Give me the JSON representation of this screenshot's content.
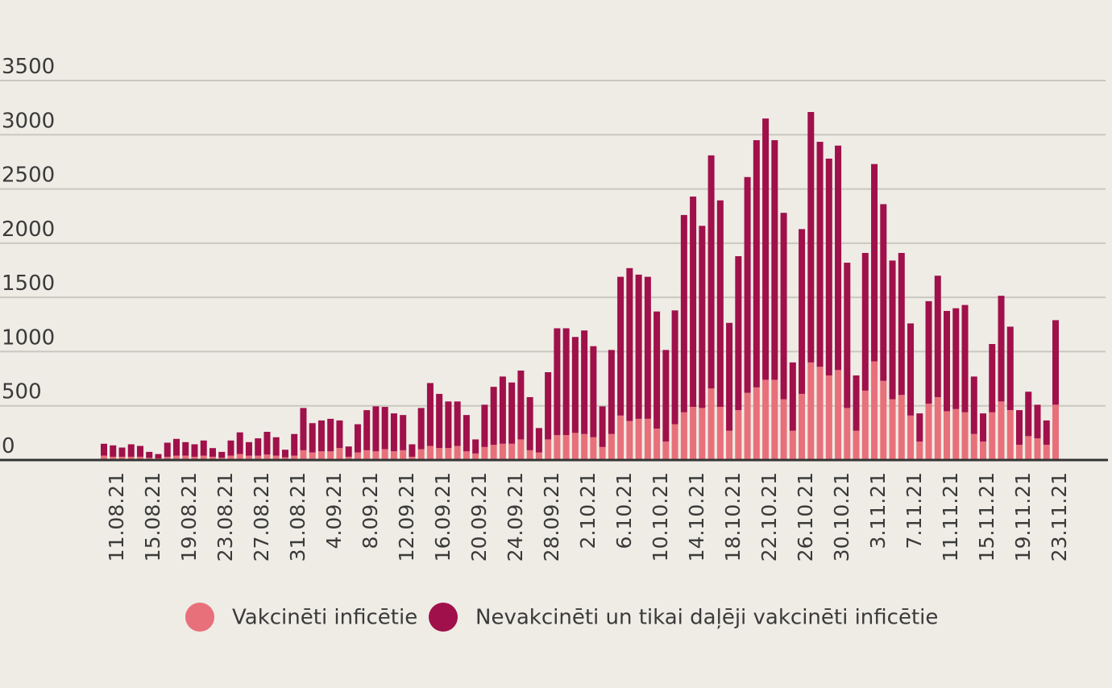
{
  "chart_data": {
    "type": "stacked_bar",
    "categories": [
      null,
      "11.08.21",
      null,
      null,
      null,
      "15.08.21",
      null,
      null,
      null,
      "19.08.21",
      null,
      null,
      null,
      "23.08.21",
      null,
      null,
      null,
      "27.08.21",
      null,
      null,
      null,
      "31.08.21",
      null,
      null,
      null,
      "4.09.21",
      null,
      null,
      null,
      "8.09.21",
      null,
      null,
      null,
      "12.09.21",
      null,
      null,
      null,
      "16.09.21",
      null,
      null,
      null,
      "20.09.21",
      null,
      null,
      null,
      "24.09.21",
      null,
      null,
      null,
      "28.09.21",
      null,
      null,
      null,
      "2.10.21",
      null,
      null,
      null,
      "6.10.21",
      null,
      null,
      null,
      "10.10.21",
      null,
      null,
      null,
      "14.10.21",
      null,
      null,
      null,
      "18.10.21",
      null,
      null,
      null,
      "22.10.21",
      null,
      null,
      null,
      "26.10.21",
      null,
      null,
      null,
      "30.10.21",
      null,
      null,
      null,
      "3.11.21",
      null,
      null,
      null,
      "7.11.21",
      null,
      null,
      null,
      "11.11.21",
      null,
      null,
      null,
      "15.11.21",
      null,
      null,
      null,
      "19.11.21",
      null,
      null,
      null,
      "23.11.21"
    ],
    "series": [
      {
        "name": "Vakcinēti inficētie",
        "color": "#e8707a",
        "values": [
          40,
          30,
          30,
          30,
          30,
          20,
          15,
          30,
          40,
          40,
          30,
          40,
          30,
          20,
          40,
          55,
          40,
          40,
          50,
          40,
          25,
          40,
          90,
          70,
          80,
          80,
          110,
          30,
          70,
          90,
          80,
          100,
          80,
          90,
          30,
          100,
          130,
          110,
          110,
          130,
          80,
          60,
          120,
          140,
          150,
          150,
          190,
          90,
          70,
          190,
          230,
          230,
          250,
          240,
          210,
          120,
          240,
          410,
          360,
          380,
          380,
          290,
          170,
          330,
          440,
          490,
          480,
          660,
          490,
          270,
          460,
          620,
          670,
          740,
          740,
          560,
          270,
          610,
          900,
          860,
          780,
          830,
          480,
          270,
          640,
          910,
          730,
          560,
          600,
          410,
          170,
          520,
          580,
          450,
          470,
          440,
          240,
          170,
          440,
          540,
          460,
          140,
          220,
          200,
          140,
          510
        ]
      },
      {
        "name": "Nevakcinēti un tikai daļēji vakcinēti inficētie",
        "color": "#a0104a",
        "values": [
          110,
          105,
          85,
          115,
          100,
          55,
          40,
          130,
          155,
          125,
          115,
          140,
          80,
          55,
          140,
          200,
          125,
          160,
          210,
          170,
          70,
          200,
          390,
          270,
          285,
          300,
          255,
          95,
          260,
          370,
          415,
          390,
          350,
          325,
          115,
          380,
          580,
          500,
          430,
          410,
          335,
          130,
          390,
          535,
          620,
          565,
          635,
          490,
          225,
          620,
          985,
          985,
          885,
          955,
          840,
          375,
          775,
          1280,
          1410,
          1330,
          1310,
          1080,
          845,
          1050,
          1820,
          1940,
          1680,
          2150,
          1905,
          995,
          1420,
          1990,
          2280,
          2410,
          2210,
          1720,
          630,
          1520,
          2310,
          2075,
          2000,
          2070,
          1340,
          510,
          1270,
          1820,
          1630,
          1280,
          1310,
          850,
          260,
          945,
          1120,
          925,
          930,
          990,
          530,
          260,
          630,
          975,
          770,
          320,
          410,
          310,
          225,
          780
        ]
      }
    ],
    "ylim": [
      0,
      3500
    ],
    "yticks": [
      0,
      500,
      1000,
      1500,
      2000,
      2500,
      3000,
      3500
    ],
    "grid": true
  }
}
